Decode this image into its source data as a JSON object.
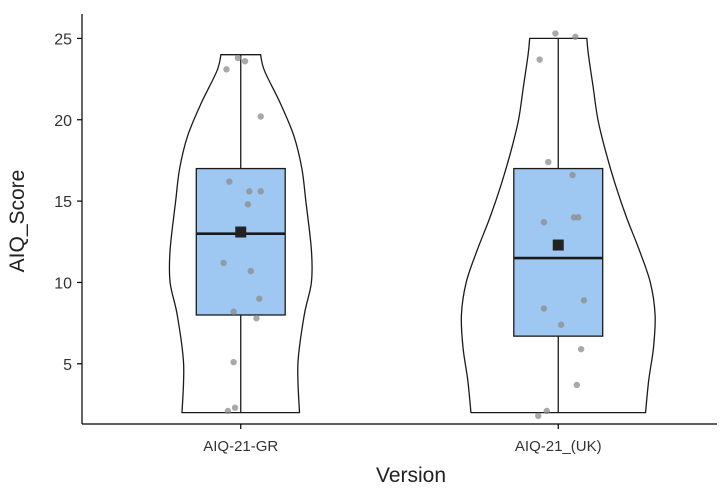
{
  "chart_data": {
    "type": "violin",
    "xlabel": "Version",
    "ylabel": "AIQ_Score",
    "ylim": [
      1.3,
      26.5
    ],
    "y_ticks": [
      5,
      10,
      15,
      20,
      25
    ],
    "grid": false,
    "legend": "none",
    "colors": {
      "box_fill": "#9ec8f2",
      "outline": "#1a1a1a",
      "point": "#8c8c8c",
      "mean_marker": "#222222"
    },
    "groups": [
      {
        "category": "AIQ-21-GR",
        "box": {
          "q1": 8.0,
          "median": 13.0,
          "q3": 17.0,
          "whisker_low": 2.0,
          "whisker_high": 24.0
        },
        "mean": 13.1,
        "violin": [
          [
            2.0,
            0.37
          ],
          [
            5.0,
            0.36
          ],
          [
            8.0,
            0.4
          ],
          [
            10.0,
            0.445
          ],
          [
            12.0,
            0.445
          ],
          [
            15.0,
            0.41
          ],
          [
            17.0,
            0.385
          ],
          [
            19.0,
            0.335
          ],
          [
            21.0,
            0.25
          ],
          [
            23.0,
            0.15
          ],
          [
            24.0,
            0.125
          ]
        ],
        "points": [
          {
            "dx": -0.1,
            "y": 23.1
          },
          {
            "dx": -0.02,
            "y": 23.8
          },
          {
            "dx": 0.03,
            "y": 23.6
          },
          {
            "dx": 0.14,
            "y": 20.2
          },
          {
            "dx": -0.08,
            "y": 16.2
          },
          {
            "dx": 0.06,
            "y": 15.6
          },
          {
            "dx": 0.14,
            "y": 15.6
          },
          {
            "dx": 0.05,
            "y": 14.8
          },
          {
            "dx": -0.12,
            "y": 11.2
          },
          {
            "dx": 0.07,
            "y": 10.7
          },
          {
            "dx": 0.13,
            "y": 9.0
          },
          {
            "dx": -0.05,
            "y": 8.2
          },
          {
            "dx": 0.11,
            "y": 7.8
          },
          {
            "dx": -0.05,
            "y": 5.1
          },
          {
            "dx": -0.09,
            "y": 2.1
          },
          {
            "dx": -0.04,
            "y": 2.3
          }
        ]
      },
      {
        "category": "AIQ-21_(UK)",
        "box": {
          "q1": 6.7,
          "median": 11.5,
          "q3": 17.0,
          "whisker_low": 2.0,
          "whisker_high": 25.0
        },
        "mean": 12.3,
        "violin": [
          [
            2.0,
            0.55
          ],
          [
            4.0,
            0.57
          ],
          [
            6.0,
            0.6
          ],
          [
            8.0,
            0.61
          ],
          [
            10.0,
            0.58
          ],
          [
            12.0,
            0.51
          ],
          [
            14.0,
            0.43
          ],
          [
            16.0,
            0.36
          ],
          [
            18.0,
            0.3
          ],
          [
            20.0,
            0.25
          ],
          [
            22.0,
            0.22
          ],
          [
            24.0,
            0.19
          ],
          [
            25.0,
            0.18
          ]
        ],
        "points": [
          {
            "dx": -0.02,
            "y": 25.3
          },
          {
            "dx": -0.13,
            "y": 23.7
          },
          {
            "dx": 0.12,
            "y": 25.1
          },
          {
            "dx": -0.07,
            "y": 17.4
          },
          {
            "dx": 0.1,
            "y": 16.6
          },
          {
            "dx": 0.11,
            "y": 14.0
          },
          {
            "dx": 0.14,
            "y": 14.0
          },
          {
            "dx": -0.1,
            "y": 13.7
          },
          {
            "dx": 0.18,
            "y": 8.9
          },
          {
            "dx": -0.1,
            "y": 8.4
          },
          {
            "dx": 0.02,
            "y": 7.4
          },
          {
            "dx": 0.16,
            "y": 5.9
          },
          {
            "dx": 0.13,
            "y": 3.7
          },
          {
            "dx": -0.08,
            "y": 2.1
          },
          {
            "dx": -0.14,
            "y": 1.8
          }
        ]
      }
    ]
  }
}
